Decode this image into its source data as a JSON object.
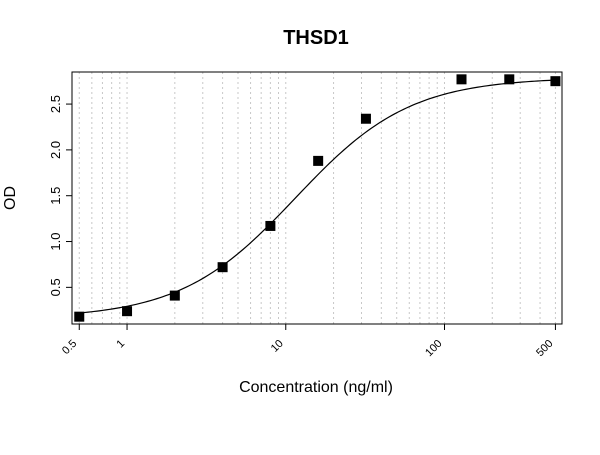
{
  "chart_data": {
    "type": "scatter",
    "title": "THSD1",
    "xlabel": "Concentration (ng/ml)",
    "ylabel": "OD",
    "x_scale": "log",
    "xlim": [
      0.45,
      550
    ],
    "ylim": [
      0.1,
      2.85
    ],
    "x_ticks": [
      0.5,
      1,
      10,
      100,
      500
    ],
    "x_tick_labels": [
      "0.5",
      "1",
      "10",
      "100",
      "500"
    ],
    "y_ticks": [
      0.5,
      1.0,
      1.5,
      2.0,
      2.5
    ],
    "y_tick_labels": [
      "0.5",
      "1.0",
      "1.5",
      "2.0",
      "2.5"
    ],
    "grid": "vertical dotted lines at log minor ticks",
    "series": [
      {
        "marker": "square",
        "color": "#000000",
        "x": [
          0.5,
          1,
          2,
          4,
          8,
          16,
          32,
          128,
          256,
          500
        ],
        "y": [
          0.18,
          0.24,
          0.41,
          0.72,
          1.17,
          1.88,
          2.34,
          2.77,
          2.77,
          2.75
        ]
      }
    ],
    "fit_curve": {
      "model": "4PL",
      "bottom": 0.16,
      "top": 2.79,
      "ec50": 11.5,
      "hill": 1.2
    }
  }
}
